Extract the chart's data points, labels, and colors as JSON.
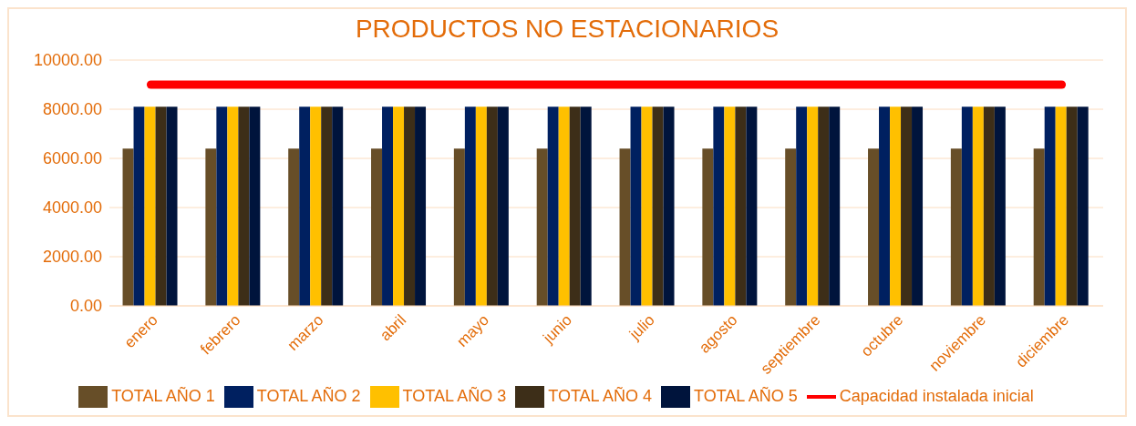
{
  "chart_data": {
    "type": "bar",
    "title": "PRODUCTOS NO ESTACIONARIOS",
    "categories": [
      "enero",
      "febrero",
      "marzo",
      "abril",
      "mayo",
      "junio",
      "julio",
      "agosto",
      "septiembre",
      "octubre",
      "noviembre",
      "diciembre"
    ],
    "series": [
      {
        "name": "TOTAL AÑO 1",
        "color": "#674e28",
        "values": [
          6400,
          6400,
          6400,
          6400,
          6400,
          6400,
          6400,
          6400,
          6400,
          6400,
          6400,
          6400
        ]
      },
      {
        "name": "TOTAL AÑO 2",
        "color": "#002060",
        "values": [
          8100,
          8100,
          8100,
          8100,
          8100,
          8100,
          8100,
          8100,
          8100,
          8100,
          8100,
          8100
        ]
      },
      {
        "name": "TOTAL AÑO 3",
        "color": "#ffc000",
        "values": [
          8100,
          8100,
          8100,
          8100,
          8100,
          8100,
          8100,
          8100,
          8100,
          8100,
          8100,
          8100
        ]
      },
      {
        "name": "TOTAL AÑO 4",
        "color": "#3d2e18",
        "values": [
          8100,
          8100,
          8100,
          8100,
          8100,
          8100,
          8100,
          8100,
          8100,
          8100,
          8100,
          8100
        ]
      },
      {
        "name": "TOTAL AÑO 5",
        "color": "#00143c",
        "values": [
          8100,
          8100,
          8100,
          8100,
          8100,
          8100,
          8100,
          8100,
          8100,
          8100,
          8100,
          8100
        ]
      },
      {
        "name": "Capacidad instalada inicial",
        "type": "line",
        "color": "#ff0000",
        "values": [
          9000,
          9000,
          9000,
          9000,
          9000,
          9000,
          9000,
          9000,
          9000,
          9000,
          9000,
          9000
        ]
      }
    ],
    "ylim": [
      0,
      10000
    ],
    "yticks": [
      {
        "value": 0,
        "label": "0.00"
      },
      {
        "value": 2000,
        "label": "2000.00"
      },
      {
        "value": 4000,
        "label": "4000.00"
      },
      {
        "value": 6000,
        "label": "6000.00"
      },
      {
        "value": 8000,
        "label": "8000.00"
      },
      {
        "value": 10000,
        "label": "10000.00"
      }
    ],
    "grid": "y",
    "legend": "bottom",
    "marker": "none"
  }
}
